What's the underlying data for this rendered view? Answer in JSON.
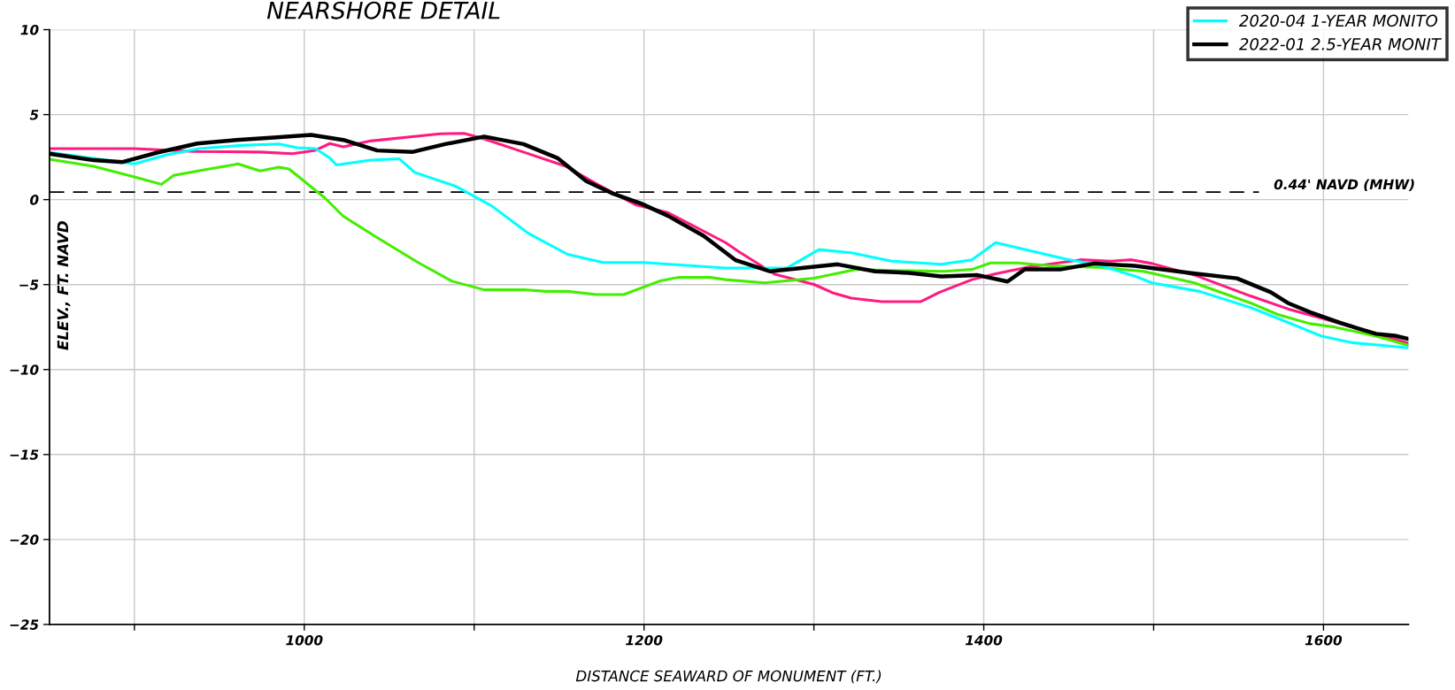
{
  "chart_data": {
    "type": "line",
    "title": "NEARSHORE DETAIL",
    "xlabel": "DISTANCE SEAWARD OF MONUMENT (FT.)",
    "ylabel": "ELEV., FT. NAVD",
    "xlim": [
      850,
      1650
    ],
    "ylim": [
      -25,
      10
    ],
    "xticks": [
      {
        "value": 900,
        "label": null
      },
      1000,
      {
        "value": 1100,
        "label": null
      },
      1200,
      {
        "value": 1300,
        "label": null
      },
      1400,
      {
        "value": 1500,
        "label": null
      },
      1600
    ],
    "yticks": [
      -25,
      -20,
      -15,
      -10,
      -5,
      0,
      5,
      10
    ],
    "grid": true,
    "legend": "top right",
    "ref_lines": [
      {
        "axis": "y",
        "value": 0.44,
        "label": "0.44' NAVD (MHW)",
        "color": "#000000",
        "line_style": "dashed"
      }
    ],
    "series": [
      {
        "color": "#ff1a80",
        "x": [
          850,
          900,
          935.5,
          974,
          993,
          1006.6,
          1015,
          1023,
          1039,
          1080,
          1094,
          1105,
          1129,
          1154,
          1173,
          1195,
          1214,
          1248,
          1256,
          1277,
          1300,
          1311,
          1322,
          1340,
          1363,
          1374,
          1393,
          1407,
          1426,
          1457,
          1475,
          1487,
          1499,
          1524,
          1557,
          1579,
          1599,
          1650
        ],
        "values": [
          3.0,
          3.0,
          2.83,
          2.8,
          2.7,
          2.9,
          3.3,
          3.1,
          3.45,
          3.87,
          3.9,
          3.6,
          2.8,
          1.96,
          0.87,
          -0.3,
          -0.76,
          -2.53,
          -3.08,
          -4.39,
          -4.99,
          -5.48,
          -5.8,
          -6.0,
          -6.0,
          -5.45,
          -4.71,
          -4.36,
          -3.98,
          -3.54,
          -3.62,
          -3.54,
          -3.76,
          -4.44,
          -5.67,
          -6.43,
          -6.98,
          -8.45
        ]
      },
      {
        "color": "#44ee00",
        "x": [
          850,
          876,
          900,
          916,
          923,
          944,
          961,
          974,
          985,
          991,
          1012,
          1023,
          1042,
          1067,
          1087,
          1106,
          1131,
          1142,
          1155,
          1172,
          1188,
          1209,
          1220,
          1239,
          1248,
          1271,
          1300,
          1325,
          1346,
          1377,
          1393,
          1404,
          1420,
          1439,
          1467,
          1494,
          1524,
          1557,
          1573,
          1592,
          1606,
          1631,
          1650
        ],
        "values": [
          2.37,
          1.96,
          1.34,
          0.9,
          1.42,
          1.8,
          2.1,
          1.69,
          1.91,
          1.8,
          0.11,
          -0.98,
          -2.18,
          -3.7,
          -4.8,
          -5.31,
          -5.31,
          -5.4,
          -5.4,
          -5.59,
          -5.59,
          -4.8,
          -4.58,
          -4.58,
          -4.71,
          -4.9,
          -4.63,
          -4.11,
          -4.17,
          -4.22,
          -4.11,
          -3.73,
          -3.73,
          -3.9,
          -3.98,
          -4.22,
          -4.9,
          -6.08,
          -6.76,
          -7.3,
          -7.49,
          -8.04,
          -8.58
        ]
      },
      {
        "name": "2020-04 1-YEAR MONITO",
        "color": "#00ffff",
        "x": [
          850,
          900,
          919,
          938,
          963,
          985,
          996,
          1006.6,
          1015,
          1019,
          1039,
          1056,
          1065,
          1089,
          1110,
          1132,
          1155,
          1176,
          1200,
          1248,
          1284,
          1303,
          1322,
          1346,
          1375,
          1393,
          1407,
          1448,
          1467,
          1489,
          1499,
          1527,
          1557,
          1573,
          1599,
          1617,
          1650
        ],
        "values": [
          2.78,
          2.1,
          2.64,
          3.0,
          3.19,
          3.27,
          3.05,
          3.0,
          2.45,
          2.04,
          2.32,
          2.4,
          1.6,
          0.79,
          -0.35,
          -1.99,
          -3.22,
          -3.7,
          -3.7,
          -4.03,
          -4.03,
          -2.94,
          -3.13,
          -3.62,
          -3.81,
          -3.54,
          -2.53,
          -3.49,
          -3.84,
          -4.5,
          -4.9,
          -5.4,
          -6.35,
          -6.98,
          -8.04,
          -8.42,
          -8.72
        ]
      },
      {
        "name": "2022-01 2.5-YEAR MONIT",
        "color": "#000000",
        "x": [
          850,
          876,
          893,
          914,
          937,
          960,
          982,
          1004,
          1023,
          1043,
          1064,
          1083,
          1106,
          1129,
          1149,
          1166,
          1181,
          1198,
          1214,
          1235,
          1254,
          1274,
          1314,
          1336,
          1356,
          1375,
          1396,
          1414,
          1424,
          1445,
          1465,
          1489,
          1521,
          1549,
          1569,
          1579,
          1592,
          1609,
          1620,
          1631,
          1642,
          1650
        ],
        "values": [
          2.7,
          2.32,
          2.21,
          2.78,
          3.3,
          3.51,
          3.65,
          3.81,
          3.51,
          2.89,
          2.81,
          3.27,
          3.71,
          3.27,
          2.45,
          1.09,
          0.38,
          -0.22,
          -0.95,
          -2.13,
          -3.57,
          -4.22,
          -3.81,
          -4.22,
          -4.31,
          -4.52,
          -4.44,
          -4.82,
          -4.11,
          -4.11,
          -3.76,
          -3.9,
          -4.31,
          -4.63,
          -5.45,
          -6.08,
          -6.62,
          -7.22,
          -7.57,
          -7.9,
          -8.01,
          -8.2
        ]
      }
    ]
  }
}
